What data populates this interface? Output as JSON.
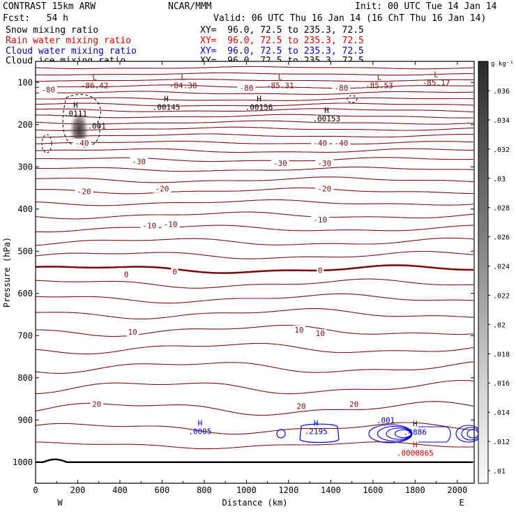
{
  "header": {
    "model": "CONTRAST 15km ARW",
    "org": "NCAR/MMM",
    "init": "Init: 00 UTC Tue 14 Jan 14",
    "fcst": "Fcst:   54 h",
    "valid": "Valid: 06 UTC Thu 16 Jan 14 (16 ChT Thu 16 Jan 14)",
    "fields": [
      {
        "label": "Snow mixing ratio",
        "xy": "XY=  96.0, 72.5 to 235.3, 72.5",
        "color": "#000000"
      },
      {
        "label": "Rain water mixing ratio",
        "xy": "XY=  96.0, 72.5 to 235.3, 72.5",
        "color": "#e00000"
      },
      {
        "label": "Cloud water mixing ratio",
        "xy": "XY=  96.0, 72.5 to 235.3, 72.5",
        "color": "#0000d0"
      },
      {
        "label": "Cloud ice mixing ratio",
        "xy": "XY=  96.0, 72.5 to 235.3, 72.5",
        "color": "#000000"
      }
    ]
  },
  "colorbar": {
    "unit": "g kg⁻¹",
    "ticks": [
      ".036",
      ".034",
      ".032",
      ".03",
      ".028",
      ".026",
      ".024",
      ".022",
      ".02",
      ".018",
      ".016",
      ".014",
      ".012",
      ".01"
    ]
  },
  "chart_data": {
    "type": "contour",
    "xlabel": "Distance (km)",
    "ylabel": "Pressure (hPa)",
    "x_ticks": [
      0,
      200,
      400,
      600,
      800,
      1000,
      1200,
      1400,
      1600,
      1800,
      2000
    ],
    "x_tick_labels": [
      "0",
      "200",
      "400",
      "600",
      "800",
      "1000",
      "1200",
      "1400",
      "1600",
      "1800",
      "2000"
    ],
    "y_ticks": [
      100,
      200,
      300,
      400,
      500,
      600,
      700,
      800,
      900,
      1000
    ],
    "y_tick_labels": [
      "100",
      "200",
      "300",
      "400",
      "500",
      "600",
      "700",
      "800",
      "900",
      "1000"
    ],
    "xlim": [
      0,
      2080
    ],
    "ylim": [
      1050,
      50
    ],
    "endpoints": {
      "left": "W",
      "right": "E"
    },
    "temperature_contours": [
      {
        "p": 65,
        "amp": 2
      },
      {
        "p": 80,
        "amp": 2
      },
      {
        "p": 95,
        "amp": 2
      },
      {
        "p": 110,
        "amp": 3
      },
      {
        "p": 125,
        "amp": 3
      },
      {
        "p": 140,
        "amp": 3
      },
      {
        "p": 153,
        "amp": 3
      },
      {
        "p": 166,
        "amp": 3
      },
      {
        "p": 180,
        "amp": 3
      },
      {
        "p": 195,
        "amp": 3
      },
      {
        "p": 210,
        "amp": 3
      },
      {
        "p": 226,
        "amp": 3
      },
      {
        "p": 243,
        "amp": 3
      },
      {
        "p": 262,
        "amp": 4
      },
      {
        "p": 283,
        "amp": 4
      },
      {
        "p": 306,
        "amp": 4
      },
      {
        "p": 331,
        "amp": 5
      },
      {
        "p": 357,
        "amp": 5
      },
      {
        "p": 385,
        "amp": 5
      },
      {
        "p": 415,
        "amp": 6
      },
      {
        "p": 446,
        "amp": 6
      },
      {
        "p": 478,
        "amp": 7
      },
      {
        "p": 510,
        "amp": 7
      },
      {
        "p": 543,
        "amp": 7,
        "bold": true
      },
      {
        "p": 577,
        "amp": 8
      },
      {
        "p": 612,
        "amp": 8
      },
      {
        "p": 648,
        "amp": 9
      },
      {
        "p": 688,
        "amp": 10
      },
      {
        "p": 730,
        "amp": 10
      },
      {
        "p": 775,
        "amp": 11
      },
      {
        "p": 823,
        "amp": 12
      },
      {
        "p": 873,
        "amp": 12
      },
      {
        "p": 920,
        "amp": 10
      },
      {
        "p": 960,
        "amp": 6
      }
    ],
    "contour_labels": [
      {
        "text": "-80",
        "x": 60,
        "p": 117
      },
      {
        "text": "-80",
        "x": 1000,
        "p": 113
      },
      {
        "text": "-80",
        "x": 1450,
        "p": 113
      },
      {
        "text": "-40",
        "x": 220,
        "p": 243
      },
      {
        "text": "-40",
        "x": 1350,
        "p": 243
      },
      {
        "text": "-40",
        "x": 1450,
        "p": 243
      },
      {
        "text": "-30",
        "x": 490,
        "p": 287
      },
      {
        "text": "-30",
        "x": 1160,
        "p": 291
      },
      {
        "text": "-30",
        "x": 1370,
        "p": 291
      },
      {
        "text": "-20",
        "x": 230,
        "p": 358
      },
      {
        "text": "-20",
        "x": 600,
        "p": 352
      },
      {
        "text": "-20",
        "x": 1370,
        "p": 352
      },
      {
        "text": "-10",
        "x": 540,
        "p": 439
      },
      {
        "text": "-10",
        "x": 640,
        "p": 436
      },
      {
        "text": "-10",
        "x": 1350,
        "p": 425
      },
      {
        "text": "0",
        "x": 430,
        "p": 555
      },
      {
        "text": "0",
        "x": 660,
        "p": 548
      },
      {
        "text": "0",
        "x": 1350,
        "p": 545
      },
      {
        "text": "10",
        "x": 460,
        "p": 691
      },
      {
        "text": "10",
        "x": 1250,
        "p": 686
      },
      {
        "text": "10",
        "x": 1350,
        "p": 695
      },
      {
        "text": "20",
        "x": 290,
        "p": 862
      },
      {
        "text": "20",
        "x": 1260,
        "p": 867
      },
      {
        "text": "20",
        "x": 1510,
        "p": 862
      }
    ],
    "extrema": [
      {
        "sym": "L",
        "val": "-86.42",
        "x": 280,
        "p": 99,
        "color": "#7a1010"
      },
      {
        "sym": "L",
        "val": "-84.38",
        "x": 700,
        "p": 99,
        "color": "#7a1010"
      },
      {
        "sym": "L",
        "val": "-85.31",
        "x": 1160,
        "p": 99,
        "color": "#7a1010"
      },
      {
        "sym": "L",
        "val": "-85.53",
        "x": 1630,
        "p": 99,
        "color": "#7a1010"
      },
      {
        "sym": "L",
        "val": "-85.17",
        "x": 1900,
        "p": 92,
        "color": "#7a1010"
      },
      {
        "sym": "H",
        "val": ".0111",
        "x": 190,
        "p": 165,
        "color": "#000000"
      },
      {
        "sym": "",
        "val": ".001",
        "x": 290,
        "p": 203,
        "color": "#000000"
      },
      {
        "sym": "H",
        "val": ".00145",
        "x": 620,
        "p": 150,
        "color": "#000000"
      },
      {
        "sym": "H",
        "val": ".00156",
        "x": 1060,
        "p": 150,
        "color": "#000000"
      },
      {
        "sym": "H",
        "val": ".00153",
        "x": 1380,
        "p": 177,
        "color": "#000000"
      },
      {
        "sym": "H",
        "val": ".0005",
        "x": 780,
        "p": 919,
        "color": "#0000d0"
      },
      {
        "sym": "H",
        "val": ".2195",
        "x": 1330,
        "p": 919,
        "color": "#0000d0"
      },
      {
        "sym": "",
        "val": ".001",
        "x": 1660,
        "p": 900,
        "color": "#0000d0"
      },
      {
        "sym": "H",
        "val": ".4886",
        "x": 1800,
        "p": 920,
        "color": "#0000d0"
      },
      {
        "sym": "H",
        "val": ".0000865",
        "x": 1800,
        "p": 970,
        "color": "#e00000"
      }
    ],
    "cloud_ice_max": {
      "x": 200,
      "p": 200,
      "value": 0.036
    }
  }
}
